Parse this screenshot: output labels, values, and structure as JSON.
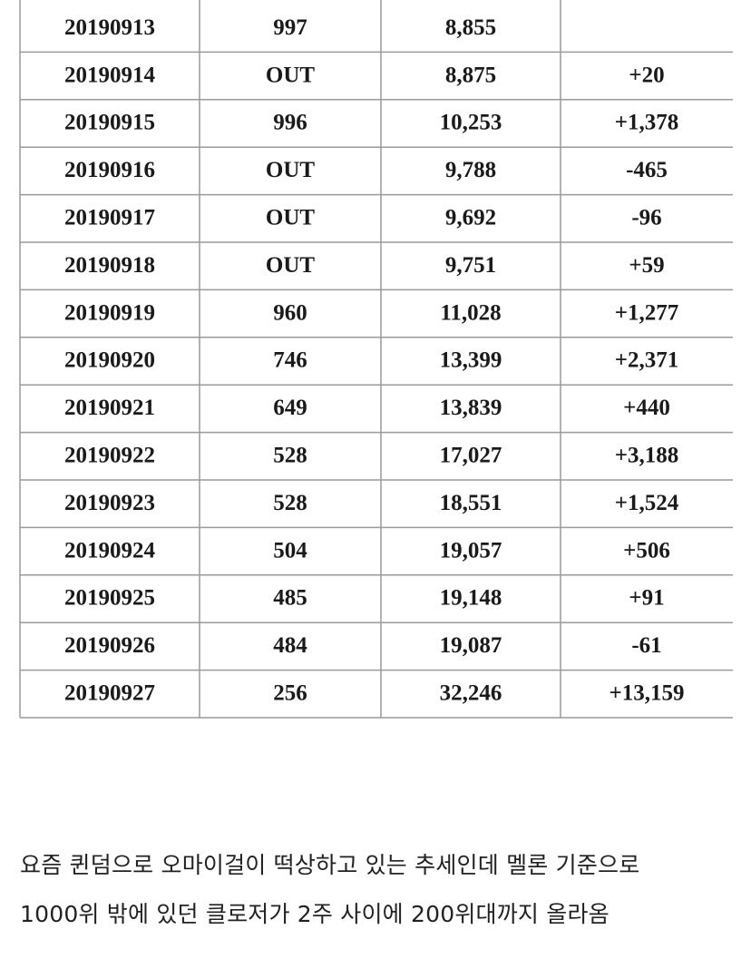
{
  "table": {
    "rows": [
      {
        "cells": [
          "20190913",
          "997",
          "8,855"
        ]
      },
      {
        "cells": [
          "20190914",
          "OUT",
          "8,875",
          "+20"
        ],
        "date_color": "#1c2bb0",
        "change_color": "#d42a2a"
      },
      {
        "cells": [
          "20190915",
          "996",
          "10,253",
          "+1,378"
        ],
        "date_color": "#d42a2a",
        "change_color": "#d42a2a"
      },
      {
        "cells": [
          "20190916",
          "OUT",
          "9,788",
          "-465"
        ],
        "change_color": "#1c2bb0"
      },
      {
        "cells": [
          "20190917",
          "OUT",
          "9,692",
          "-96"
        ],
        "change_color": "#1c2bb0"
      },
      {
        "cells": [
          "20190918",
          "OUT",
          "9,751",
          "+59"
        ],
        "change_color": "#d42a2a"
      },
      {
        "cells": [
          "20190919",
          "960",
          "11,028",
          "+1,277"
        ],
        "change_color": "#d42a2a"
      },
      {
        "cells": [
          "20190920",
          "746",
          "13,399",
          "+2,371"
        ],
        "change_color": "#d42a2a"
      },
      {
        "cells": [
          "20190921",
          "649",
          "13,839",
          "+440"
        ],
        "date_color": "#1c2bb0",
        "change_color": "#d42a2a"
      },
      {
        "cells": [
          "20190922",
          "528",
          "17,027",
          "+3,188"
        ],
        "date_color": "#d42a2a",
        "change_color": "#d42a2a"
      },
      {
        "cells": [
          "20190923",
          "528",
          "18,551",
          "+1,524"
        ],
        "change_color": "#d42a2a"
      },
      {
        "cells": [
          "20190924",
          "504",
          "19,057",
          "+506"
        ],
        "change_color": "#d42a2a"
      },
      {
        "cells": [
          "20190925",
          "485",
          "19,148",
          "+91"
        ],
        "change_color": "#d42a2a"
      },
      {
        "cells": [
          "20190926",
          "484",
          "19,087",
          "-61"
        ],
        "change_color": "#1c2bb0"
      },
      {
        "cells": [
          "20190927",
          "256",
          "32,246",
          "+13,159"
        ],
        "change_color": "#d42a2a"
      }
    ]
  },
  "caption": {
    "lines": [
      "요즘 퀸덤으로 오마이걸이 떡상하고 있는 추세인데 멜론 기준으로",
      "1000위 밖에 있던 클로저가 2주 사이에 200위대까지 올라옴"
    ]
  }
}
